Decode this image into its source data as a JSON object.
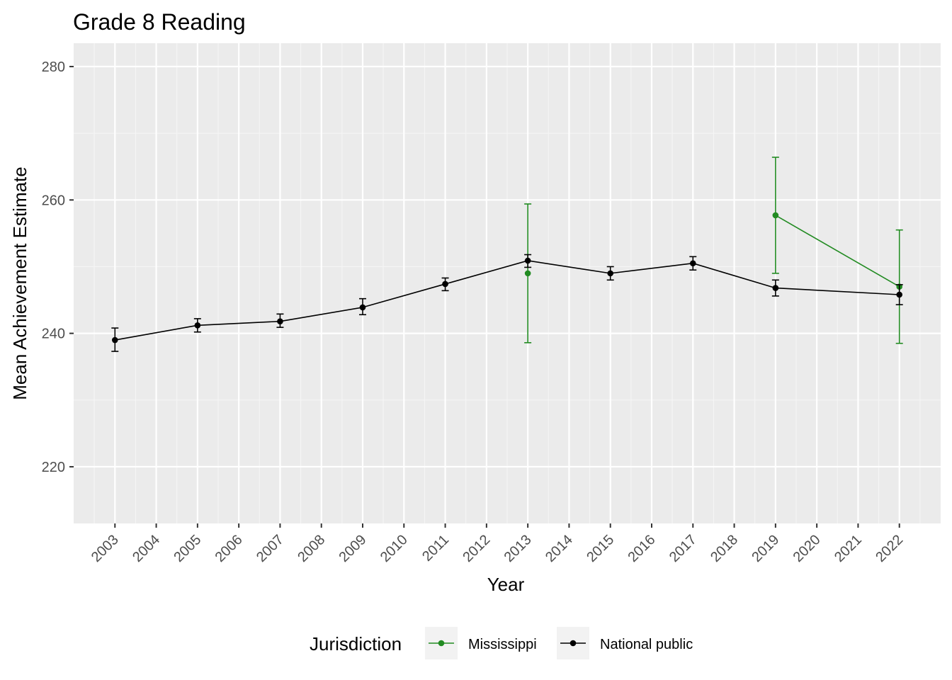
{
  "chart_data": {
    "type": "line",
    "title": "Grade 8 Reading",
    "xlabel": "Year",
    "ylabel": "Mean Achievement Estimate",
    "x_ticks": [
      "2003",
      "2004",
      "2005",
      "2006",
      "2007",
      "2008",
      "2009",
      "2010",
      "2011",
      "2012",
      "2013",
      "2014",
      "2015",
      "2016",
      "2017",
      "2018",
      "2019",
      "2020",
      "2021",
      "2022"
    ],
    "y_ticks": [
      220,
      240,
      260,
      280
    ],
    "ylim": [
      211.5,
      283.5
    ],
    "xlim": [
      2002.0,
      2023.0
    ],
    "grid": true,
    "legend": {
      "title": "Jurisdiction",
      "position": "bottom"
    },
    "series": [
      {
        "name": "Mississippi",
        "color": "#228b22",
        "points": [
          {
            "x": 2013,
            "y": 249.0,
            "lower": 238.6,
            "upper": 259.4
          },
          {
            "x": 2019,
            "y": 257.7,
            "lower": 249.0,
            "upper": 266.4
          },
          {
            "x": 2022,
            "y": 247.0,
            "lower": 238.5,
            "upper": 255.5
          }
        ],
        "connect": [
          [
            2019,
            2022
          ]
        ]
      },
      {
        "name": "National public",
        "color": "#000000",
        "points": [
          {
            "x": 2003,
            "y": 239.0,
            "lower": 237.3,
            "upper": 240.8
          },
          {
            "x": 2005,
            "y": 241.2,
            "lower": 240.2,
            "upper": 242.2
          },
          {
            "x": 2007,
            "y": 241.8,
            "lower": 240.9,
            "upper": 242.9
          },
          {
            "x": 2009,
            "y": 243.9,
            "lower": 242.8,
            "upper": 245.2
          },
          {
            "x": 2011,
            "y": 247.4,
            "lower": 246.4,
            "upper": 248.3
          },
          {
            "x": 2013,
            "y": 250.9,
            "lower": 249.9,
            "upper": 251.8
          },
          {
            "x": 2015,
            "y": 249.0,
            "lower": 248.0,
            "upper": 250.0
          },
          {
            "x": 2017,
            "y": 250.5,
            "lower": 249.5,
            "upper": 251.5
          },
          {
            "x": 2019,
            "y": 246.8,
            "lower": 245.6,
            "upper": 248.0
          },
          {
            "x": 2022,
            "y": 245.8,
            "lower": 244.3,
            "upper": 247.3
          }
        ]
      }
    ]
  }
}
